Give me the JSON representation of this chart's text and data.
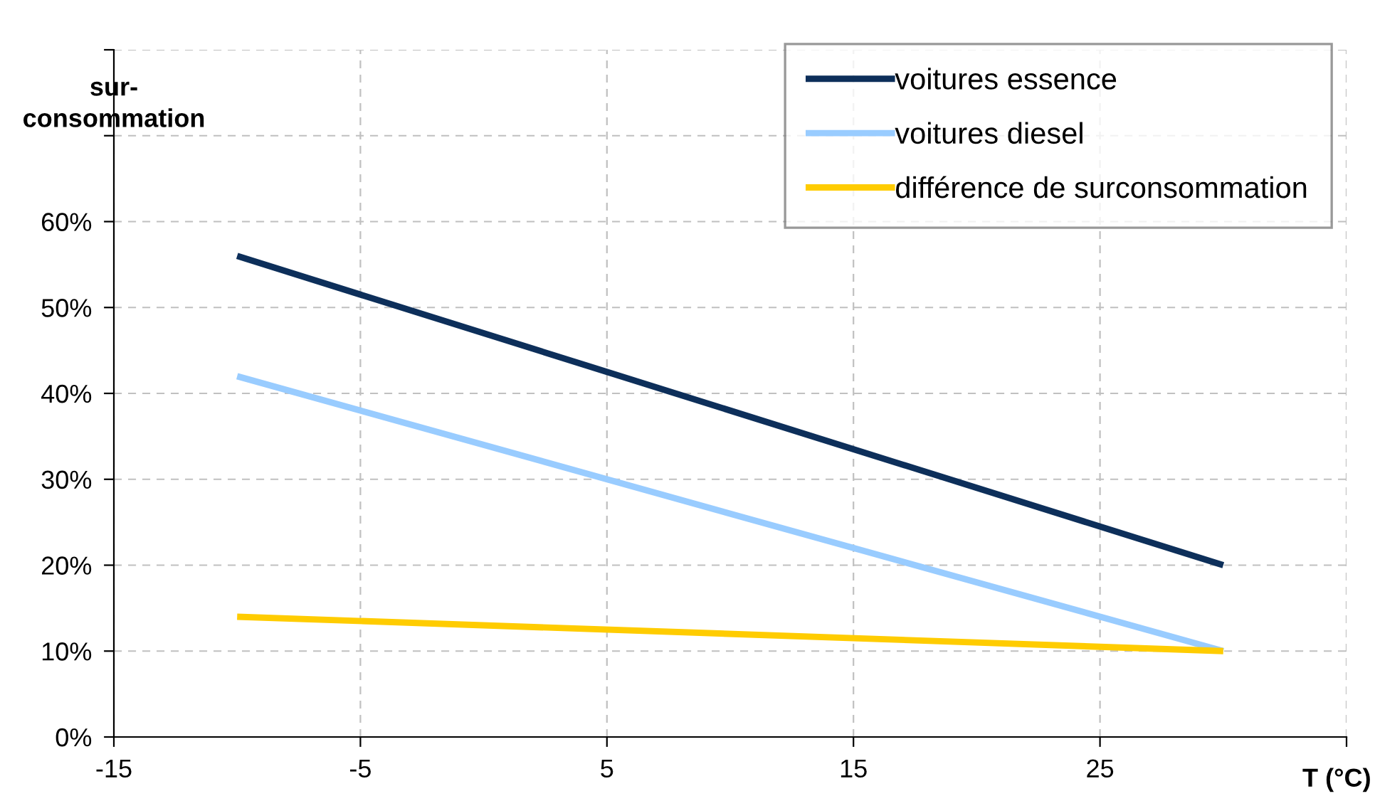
{
  "chart_data": {
    "type": "line",
    "ylabel": "sur-\nconsommation",
    "xlabel": "T (°C)",
    "x": [
      -10,
      30
    ],
    "series": [
      {
        "name": "voitures essence",
        "color": "#0d2f5a",
        "values": [
          56,
          20
        ]
      },
      {
        "name": "voitures diesel",
        "color": "#99ccff",
        "values": [
          42,
          10
        ]
      },
      {
        "name": "différence de surconsommation",
        "color": "#ffcc00",
        "values": [
          14,
          10
        ]
      }
    ],
    "xlim": [
      -15,
      35
    ],
    "xticks": [
      -15,
      -5,
      5,
      15,
      25,
      {
        "value": 35,
        "label": null
      }
    ],
    "ylim": [
      0,
      80
    ],
    "yticks": [
      {
        "value": 0,
        "label": "0%"
      },
      {
        "value": 10,
        "label": "10%"
      },
      {
        "value": 20,
        "label": "20%"
      },
      {
        "value": 30,
        "label": "30%"
      },
      {
        "value": 40,
        "label": "40%"
      },
      {
        "value": 50,
        "label": "50%"
      },
      {
        "value": 60,
        "label": "60%"
      },
      {
        "value": 70,
        "label": null
      },
      {
        "value": 80,
        "label": null
      }
    ],
    "grid": true,
    "legend": "top right",
    "marker": "none",
    "line_style": "solid"
  }
}
